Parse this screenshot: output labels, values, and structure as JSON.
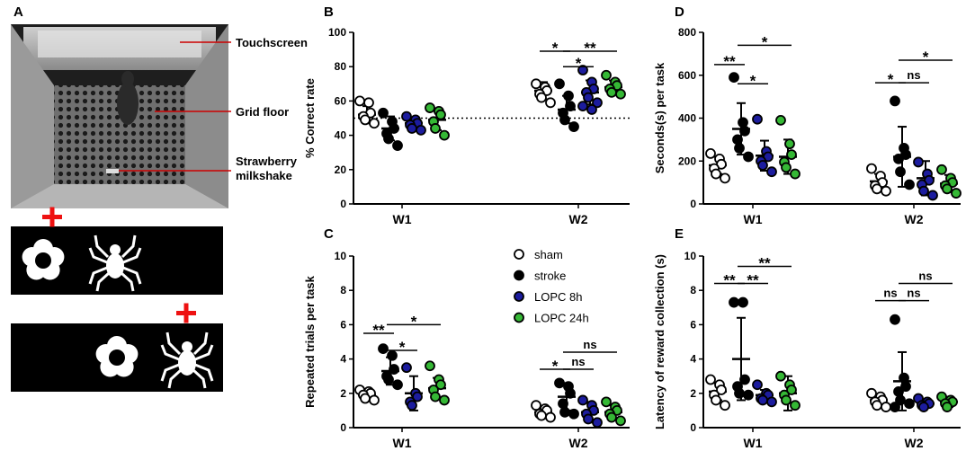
{
  "colors": {
    "sham": "#ffffff",
    "stroke": "#000000",
    "lopc8": "#1c1c9e",
    "lopc24": "#35b835",
    "cross": "#ee1111",
    "callout": "#cc0000"
  },
  "panel_a": {
    "letter": "A",
    "labels": {
      "touchscreen": "Touchscreen",
      "grid_floor": "Grid floor",
      "milkshake_1": "Strawberry",
      "milkshake_2": "milkshake"
    },
    "stimuli": [
      "flower-stimulus",
      "spider-stimulus"
    ]
  },
  "legend": [
    {
      "key": "sham",
      "label": "sham"
    },
    {
      "key": "stroke",
      "label": "stroke"
    },
    {
      "key": "lopc8",
      "label": "LOPC 8h"
    },
    {
      "key": "lopc24",
      "label": "LOPC 24h"
    }
  ],
  "chart_data": [
    {
      "id": "B",
      "type": "scatter",
      "ylabel": "% Correct rate",
      "ylim": [
        0,
        100
      ],
      "yticks": [
        0,
        20,
        40,
        60,
        80,
        100
      ],
      "categories": [
        "W1",
        "W2"
      ],
      "reference_line": 50,
      "series": [
        {
          "name": "sham",
          "values": [
            [
              60,
              59,
              53,
              51,
              49,
              47
            ],
            [
              70,
              68,
              66,
              64,
              62,
              59
            ]
          ],
          "mean": [
            52,
            66
          ],
          "sd": [
            5,
            5
          ]
        },
        {
          "name": "stroke",
          "values": [
            [
              53,
              48,
              44,
              41,
              38,
              34
            ],
            [
              70,
              63,
              57,
              53,
              49,
              45
            ]
          ],
          "mean": [
            44,
            55
          ],
          "sd": [
            7,
            8
          ]
        },
        {
          "name": "LOPC 8h",
          "values": [
            [
              51,
              49,
              47,
              46,
              44,
              43
            ],
            [
              78,
              71,
              67,
              65,
              62,
              59,
              57,
              55
            ]
          ],
          "mean": [
            47,
            65
          ],
          "sd": [
            3,
            7
          ]
        },
        {
          "name": "LOPC 24h",
          "values": [
            [
              56,
              54,
              52,
              48,
              44,
              40
            ],
            [
              75,
              71,
              69,
              67,
              65,
              64
            ]
          ],
          "mean": [
            49,
            68
          ],
          "sd": [
            6,
            4
          ]
        }
      ],
      "brackets": [
        {
          "group": 1,
          "from": 1,
          "to": 2,
          "y": 89,
          "label": "*"
        },
        {
          "group": 1,
          "from": 2,
          "to": 3,
          "y": 80,
          "label": "*"
        },
        {
          "group": 1,
          "from": 2,
          "to": 4,
          "y": 89,
          "label": "**"
        }
      ]
    },
    {
      "id": "C",
      "type": "scatter",
      "ylabel": "Repeated trials per task",
      "ylim": [
        0,
        10
      ],
      "yticks": [
        0,
        2,
        4,
        6,
        8,
        10
      ],
      "categories": [
        "W1",
        "W2"
      ],
      "series": [
        {
          "name": "sham",
          "values": [
            [
              2.2,
              2.1,
              2.0,
              1.9,
              1.7,
              1.6
            ],
            [
              1.3,
              1.1,
              1.0,
              0.8,
              0.7,
              0.6
            ]
          ],
          "mean": [
            1.9,
            0.9
          ],
          "sd": [
            0.2,
            0.3
          ]
        },
        {
          "name": "stroke",
          "values": [
            [
              4.6,
              4.2,
              3.4,
              3.0,
              2.8,
              2.5
            ],
            [
              2.6,
              2.4,
              2.0,
              1.4,
              0.9,
              0.8
            ]
          ],
          "mean": [
            3.3,
            1.8
          ],
          "sd": [
            0.8,
            0.8
          ]
        },
        {
          "name": "LOPC 8h",
          "values": [
            [
              3.5,
              2.0,
              1.8,
              1.5,
              1.3
            ],
            [
              1.6,
              1.3,
              1.0,
              0.8,
              0.5,
              0.3
            ]
          ],
          "mean": [
            2.0,
            0.9
          ],
          "sd": [
            1.0,
            0.6
          ]
        },
        {
          "name": "LOPC 24h",
          "values": [
            [
              3.6,
              2.8,
              2.5,
              2.2,
              1.8,
              1.6
            ],
            [
              1.5,
              1.2,
              1.0,
              0.8,
              0.6,
              0.4
            ]
          ],
          "mean": [
            2.3,
            0.9
          ],
          "sd": [
            0.6,
            0.4
          ]
        }
      ],
      "brackets": [
        {
          "group": 0,
          "from": 1,
          "to": 2,
          "y": 5.5,
          "label": "**"
        },
        {
          "group": 0,
          "from": 2,
          "to": 3,
          "y": 4.5,
          "label": "*"
        },
        {
          "group": 0,
          "from": 2,
          "to": 4,
          "y": 6.0,
          "label": "*"
        },
        {
          "group": 1,
          "from": 1,
          "to": 2,
          "y": 3.4,
          "label": "*"
        },
        {
          "group": 1,
          "from": 2,
          "to": 3,
          "y": 3.4,
          "label": "ns"
        },
        {
          "group": 1,
          "from": 2,
          "to": 4,
          "y": 4.4,
          "label": "ns"
        }
      ]
    },
    {
      "id": "D",
      "type": "scatter",
      "ylabel": "Seconds(s) per task",
      "ylim": [
        0,
        800
      ],
      "yticks": [
        0,
        200,
        400,
        600,
        800
      ],
      "categories": [
        "W1",
        "W2"
      ],
      "series": [
        {
          "name": "sham",
          "values": [
            [
              235,
              210,
              185,
              165,
              140,
              120
            ],
            [
              165,
              130,
              100,
              85,
              70,
              60
            ]
          ],
          "mean": [
            180,
            105
          ],
          "sd": [
            40,
            35
          ]
        },
        {
          "name": "stroke",
          "values": [
            [
              590,
              380,
              340,
              300,
              260,
              220
            ],
            [
              480,
              260,
              230,
              210,
              150,
              90
            ]
          ],
          "mean": [
            350,
            220
          ],
          "sd": [
            120,
            140
          ]
        },
        {
          "name": "LOPC 8h",
          "values": [
            [
              395,
              245,
              220,
              200,
              180,
              150
            ],
            [
              195,
              140,
              110,
              90,
              60,
              40
            ]
          ],
          "mean": [
            225,
            120
          ],
          "sd": [
            70,
            80
          ]
        },
        {
          "name": "LOPC 24h",
          "values": [
            [
              390,
              280,
              230,
              195,
              170,
              140
            ],
            [
              160,
              120,
              100,
              85,
              70,
              50
            ]
          ],
          "mean": [
            220,
            95
          ],
          "sd": [
            80,
            40
          ]
        }
      ],
      "brackets": [
        {
          "group": 0,
          "from": 1,
          "to": 2,
          "y": 650,
          "label": "**"
        },
        {
          "group": 0,
          "from": 2,
          "to": 3,
          "y": 560,
          "label": "*"
        },
        {
          "group": 0,
          "from": 2,
          "to": 4,
          "y": 740,
          "label": "*"
        },
        {
          "group": 1,
          "from": 1,
          "to": 2,
          "y": 565,
          "label": "*"
        },
        {
          "group": 1,
          "from": 2,
          "to": 3,
          "y": 565,
          "label": "ns"
        },
        {
          "group": 1,
          "from": 2,
          "to": 4,
          "y": 670,
          "label": "*"
        }
      ]
    },
    {
      "id": "E",
      "type": "scatter",
      "ylabel": "Latency of reward collection (s)",
      "ylim": [
        0,
        10
      ],
      "yticks": [
        0,
        2,
        4,
        6,
        8,
        10
      ],
      "categories": [
        "W1",
        "W2"
      ],
      "series": [
        {
          "name": "sham",
          "values": [
            [
              2.8,
              2.5,
              2.2,
              1.9,
              1.6,
              1.3
            ],
            [
              2.0,
              1.8,
              1.6,
              1.5,
              1.3,
              1.2
            ]
          ],
          "mean": [
            2.1,
            1.6
          ],
          "sd": [
            0.5,
            0.3
          ]
        },
        {
          "name": "stroke",
          "values": [
            [
              7.3,
              7.3,
              2.8,
              2.4,
              2.0,
              1.9
            ],
            [
              6.3,
              2.9,
              2.4,
              2.1,
              1.6,
              1.4,
              1.2
            ]
          ],
          "mean": [
            4.0,
            2.7
          ],
          "sd": [
            2.4,
            1.7
          ]
        },
        {
          "name": "LOPC 8h",
          "values": [
            [
              2.5,
              2.0,
              1.9,
              1.7,
              1.6,
              1.5
            ],
            [
              1.7,
              1.5,
              1.4,
              1.3,
              1.2
            ]
          ],
          "mean": [
            1.9,
            1.4
          ],
          "sd": [
            0.3,
            0.2
          ]
        },
        {
          "name": "LOPC 24h",
          "values": [
            [
              3.0,
              2.5,
              2.2,
              1.9,
              1.6,
              1.3
            ],
            [
              1.8,
              1.6,
              1.5,
              1.4,
              1.2
            ]
          ],
          "mean": [
            2.0,
            1.5
          ],
          "sd": [
            1.0,
            0.3
          ]
        }
      ],
      "brackets": [
        {
          "group": 0,
          "from": 1,
          "to": 2,
          "y": 8.4,
          "label": "**"
        },
        {
          "group": 0,
          "from": 2,
          "to": 3,
          "y": 8.4,
          "label": "**"
        },
        {
          "group": 0,
          "from": 2,
          "to": 4,
          "y": 9.4,
          "label": "**"
        },
        {
          "group": 1,
          "from": 1,
          "to": 2,
          "y": 7.4,
          "label": "ns"
        },
        {
          "group": 1,
          "from": 2,
          "to": 3,
          "y": 7.4,
          "label": "ns"
        },
        {
          "group": 1,
          "from": 2,
          "to": 4,
          "y": 8.4,
          "label": "ns"
        }
      ]
    }
  ]
}
